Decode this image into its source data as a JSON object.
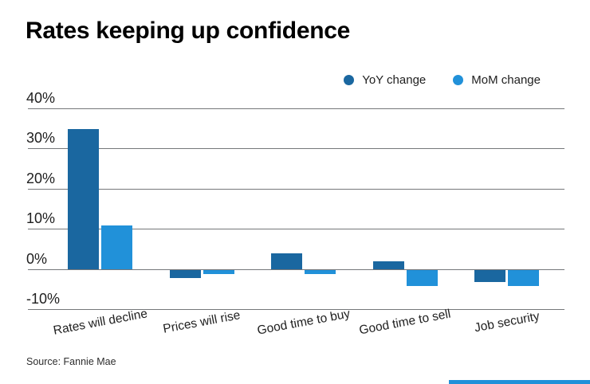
{
  "title": "Rates keeping up confidence",
  "source": "Source: Fannie Mae",
  "colors": {
    "yoy": "#1a67a0",
    "mom": "#2191d9",
    "grid": "#75777a",
    "accent_strip": "#2191d9"
  },
  "legend": [
    {
      "label": "YoY change",
      "color": "#1a67a0"
    },
    {
      "label": "MoM change",
      "color": "#2191d9"
    }
  ],
  "chart_data": {
    "type": "bar",
    "title": "Rates keeping up confidence",
    "categories": [
      "Rates will decline",
      "Prices will rise",
      "Good time to buy",
      "Good time to sell",
      "Job security"
    ],
    "series": [
      {
        "name": "YoY change",
        "color": "#1a67a0",
        "values": [
          35,
          -2,
          4,
          2,
          -3
        ]
      },
      {
        "name": "MoM change",
        "color": "#2191d9",
        "values": [
          11,
          -1,
          -1,
          -4,
          -4
        ]
      }
    ],
    "xlabel": "",
    "ylabel": "",
    "ylim": [
      -10,
      40
    ],
    "yticks": [
      {
        "label": "40%",
        "value": 40
      },
      {
        "label": "30%",
        "value": 30
      },
      {
        "label": "20%",
        "value": 20
      },
      {
        "label": "10%",
        "value": 10
      },
      {
        "label": "0%",
        "value": 0
      },
      {
        "label": "-10%",
        "value": -10
      }
    ],
    "grid": true,
    "legend_position": "top-right",
    "annotations": [
      "Source: Fannie Mae"
    ]
  }
}
